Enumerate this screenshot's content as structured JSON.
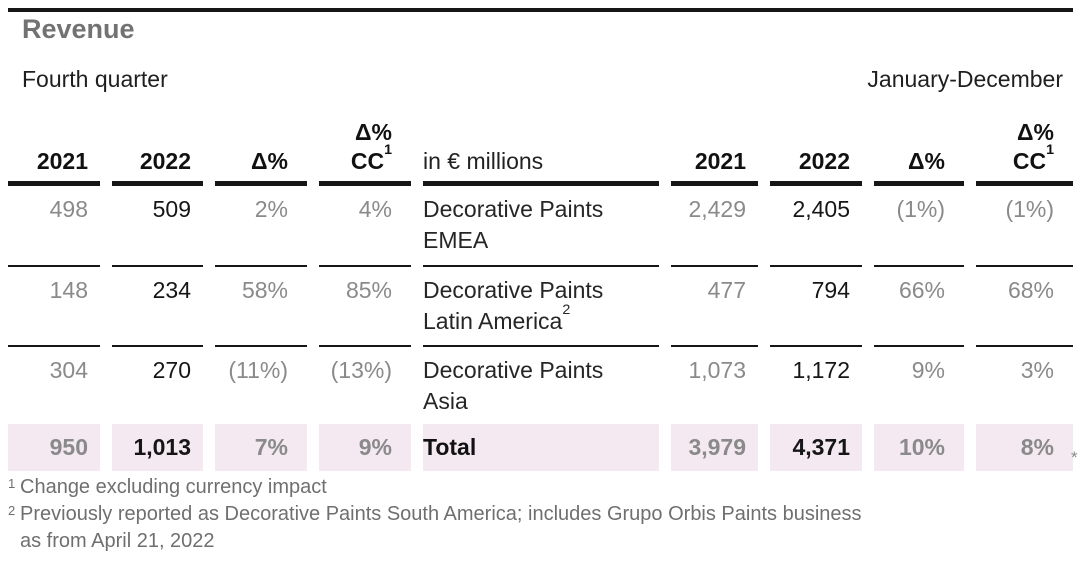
{
  "title": "Revenue",
  "periods": {
    "left": "Fourth quarter",
    "right": "January-December"
  },
  "table": {
    "unit_label": "in € millions",
    "header": {
      "year1": "2021",
      "year2": "2022",
      "delta": "Δ%",
      "delta_cc_line1": "Δ%",
      "delta_cc_line2": "CC",
      "delta_cc_sup": "1"
    },
    "rows": [
      {
        "label_line1": "Decorative Paints",
        "label_line2": "EMEA",
        "label_sup": "",
        "q4": {
          "y2021": "498",
          "y2022": "509",
          "delta": "2%",
          "delta_cc": "4%"
        },
        "fy": {
          "y2021": "2,429",
          "y2022": "2,405",
          "delta": "(1%)",
          "delta_cc": "(1%)"
        }
      },
      {
        "label_line1": "Decorative Paints",
        "label_line2": "Latin America",
        "label_sup": "2",
        "q4": {
          "y2021": "148",
          "y2022": "234",
          "delta": "58%",
          "delta_cc": "85%"
        },
        "fy": {
          "y2021": "477",
          "y2022": "794",
          "delta": "66%",
          "delta_cc": "68%"
        }
      },
      {
        "label_line1": "Decorative Paints",
        "label_line2": "Asia",
        "label_sup": "",
        "q4": {
          "y2021": "304",
          "y2022": "270",
          "delta": "(11%)",
          "delta_cc": "(13%)"
        },
        "fy": {
          "y2021": "1,073",
          "y2022": "1,172",
          "delta": "9%",
          "delta_cc": "3%"
        }
      }
    ],
    "total": {
      "label": "Total",
      "q4": {
        "y2021": "950",
        "y2022": "1,013",
        "delta": "7%",
        "delta_cc": "9%"
      },
      "fy": {
        "y2021": "3,979",
        "y2022": "4,371",
        "delta": "10%",
        "delta_cc": "8%"
      }
    },
    "star_note": "*"
  },
  "footnotes": [
    {
      "marker": "1",
      "lines": [
        "Change excluding currency impact"
      ]
    },
    {
      "marker": "2",
      "lines": [
        "Previously reported as Decorative Paints South America; includes Grupo Orbis Paints business",
        "as from April 21, 2022"
      ]
    }
  ],
  "colors": {
    "total_row_background": "#f4e9f1",
    "text_black": "#161616",
    "value_gray": "#8a8a8a",
    "title_gray": "#727272",
    "footnote_gray": "#6f6f6f"
  }
}
